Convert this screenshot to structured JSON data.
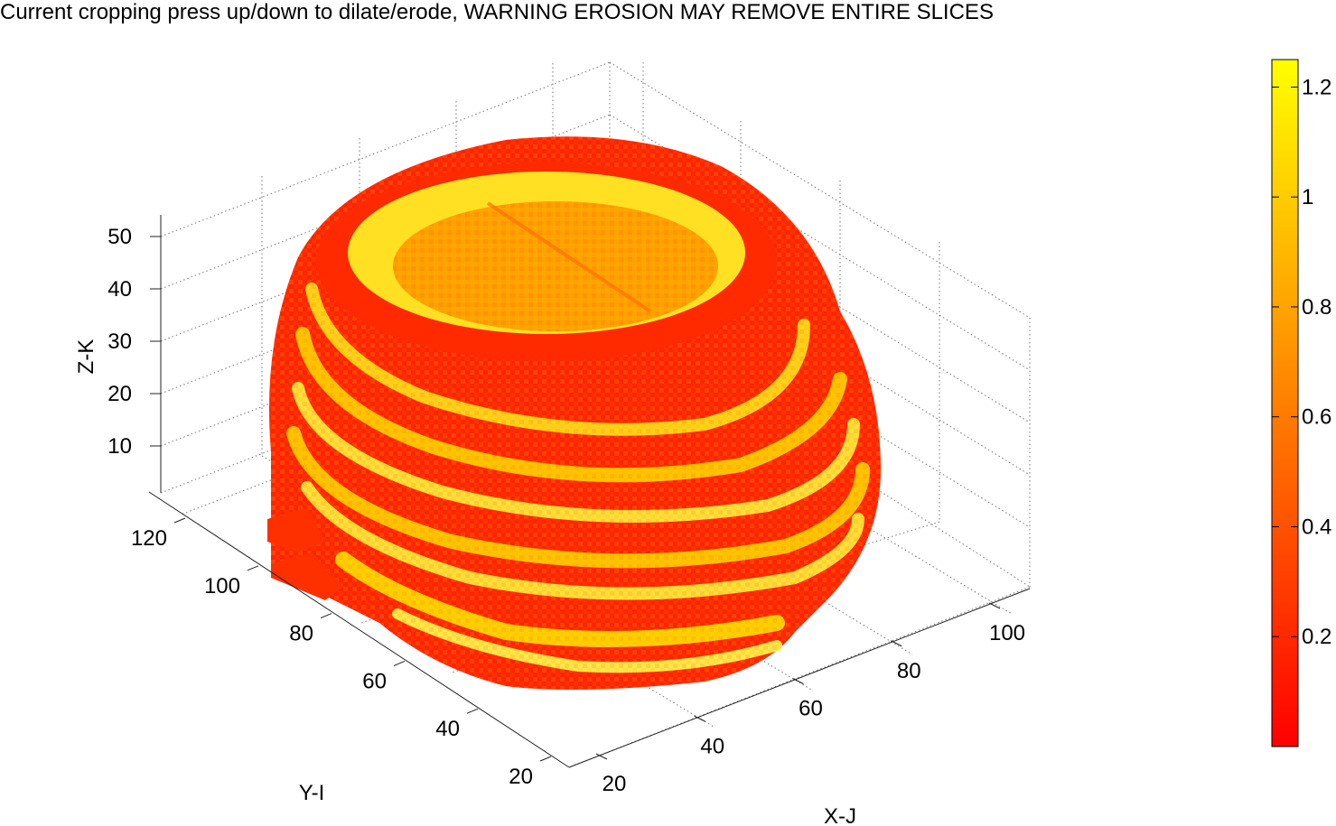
{
  "title": "Current cropping press up/down to dilate/erode, WARNING EROSION MAY REMOVE ENTIRE SLICES",
  "chart_data": {
    "type": "3d-voxel-surface",
    "title": "Current cropping press up/down to dilate/erode, WARNING EROSION MAY REMOVE ENTIRE SLICES",
    "xlabel": "X-J",
    "ylabel": "Y-I",
    "zlabel": "Z-K",
    "x_ticks": [
      20,
      40,
      60,
      80,
      100
    ],
    "y_ticks": [
      20,
      40,
      60,
      80,
      100,
      120
    ],
    "z_ticks": [
      10,
      20,
      30,
      40,
      50
    ],
    "colorbar": {
      "ticks": [
        0.2,
        0.4,
        0.6,
        0.8,
        1,
        1.2
      ],
      "tick_labels": [
        "0.2",
        "0.4",
        "0.6",
        "0.8",
        "1",
        "1.2"
      ],
      "range": [
        0,
        1.25
      ],
      "colormap": "autumn",
      "colors": [
        "#ff0000",
        "#ffff00"
      ]
    },
    "grid": true
  }
}
